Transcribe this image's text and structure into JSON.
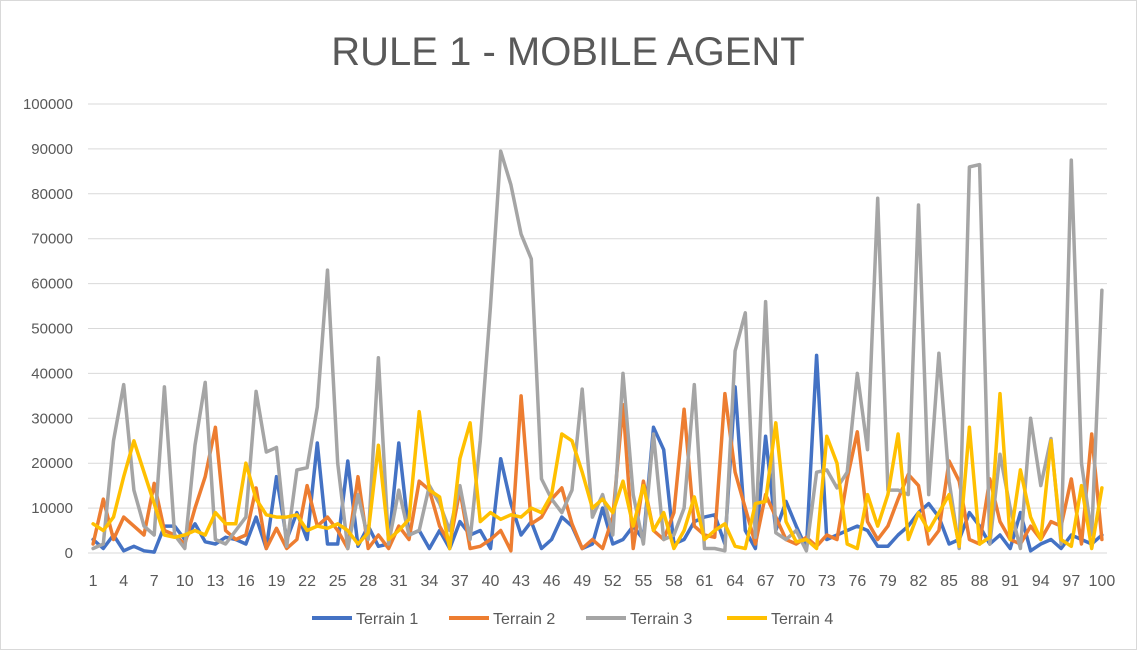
{
  "chart_data": {
    "type": "line",
    "title": "RULE 1 - MOBILE AGENT",
    "xlabel": "",
    "ylabel": "",
    "ylim": [
      0,
      100000
    ],
    "y_ticks": [
      0,
      10000,
      20000,
      30000,
      40000,
      50000,
      60000,
      70000,
      80000,
      90000,
      100000
    ],
    "x": [
      1,
      2,
      3,
      4,
      5,
      6,
      7,
      8,
      9,
      10,
      11,
      12,
      13,
      14,
      15,
      16,
      17,
      18,
      19,
      20,
      21,
      22,
      23,
      24,
      25,
      26,
      27,
      28,
      29,
      30,
      31,
      32,
      33,
      34,
      35,
      36,
      37,
      38,
      39,
      40,
      41,
      42,
      43,
      44,
      45,
      46,
      47,
      48,
      49,
      50,
      51,
      52,
      53,
      54,
      55,
      56,
      57,
      58,
      59,
      60,
      61,
      62,
      63,
      64,
      65,
      66,
      67,
      68,
      69,
      70,
      71,
      72,
      73,
      74,
      75,
      76,
      77,
      78,
      79,
      80,
      81,
      82,
      83,
      84,
      85,
      86,
      87,
      88,
      89,
      90,
      91,
      92,
      93,
      94,
      95,
      96,
      97,
      98,
      99,
      100
    ],
    "x_tick_labels": [
      "1",
      "4",
      "7",
      "10",
      "13",
      "16",
      "19",
      "22",
      "25",
      "28",
      "31",
      "34",
      "37",
      "40",
      "43",
      "46",
      "49",
      "52",
      "55",
      "58",
      "61",
      "64",
      "67",
      "70",
      "73",
      "76",
      "79",
      "82",
      "85",
      "88",
      "91",
      "94",
      "97",
      "100"
    ],
    "grid": true,
    "legend_position": "bottom",
    "series": [
      {
        "name": "Terrain 1",
        "color": "#4472c4",
        "values": [
          3000,
          1000,
          4000,
          500,
          1500,
          500,
          200,
          6000,
          6000,
          3000,
          6500,
          2500,
          2000,
          3500,
          3000,
          2000,
          8000,
          1000,
          17000,
          3000,
          9000,
          3000,
          24500,
          2000,
          2000,
          20500,
          1500,
          6000,
          1500,
          2000,
          24500,
          4000,
          5000,
          1000,
          5000,
          1000,
          7000,
          4000,
          5000,
          1000,
          21000,
          11000,
          4000,
          7000,
          1000,
          3000,
          8000,
          6000,
          1000,
          2000,
          10000,
          2000,
          3000,
          6000,
          3000,
          28000,
          23000,
          2000,
          3000,
          7000,
          8000,
          8500,
          2000,
          37000,
          5000,
          1000,
          26000,
          5000,
          11500,
          6000,
          1000,
          44000,
          3000,
          4000,
          5000,
          6000,
          5000,
          1500,
          1500,
          4000,
          6000,
          9000,
          11000,
          8000,
          2000,
          3000,
          9000,
          6000,
          2000,
          4000,
          1000,
          9000,
          500,
          2000,
          3000,
          1000,
          4000,
          3000,
          2000,
          4000
        ]
      },
      {
        "name": "Terrain 2",
        "color": "#ed7d31",
        "values": [
          2000,
          12000,
          3000,
          8000,
          6000,
          4000,
          15500,
          5000,
          4000,
          2000,
          10000,
          17000,
          28000,
          5000,
          3000,
          4000,
          14500,
          1000,
          5500,
          1000,
          3000,
          15000,
          6000,
          8000,
          5000,
          1000,
          17000,
          1000,
          4000,
          1000,
          6000,
          3000,
          16000,
          14000,
          6000,
          2000,
          14000,
          1000,
          1500,
          3000,
          5000,
          500,
          35000,
          6500,
          8000,
          12000,
          14500,
          6500,
          1000,
          3000,
          1000,
          8000,
          33000,
          1000,
          16000,
          5000,
          3000,
          9000,
          32000,
          6000,
          4000,
          3500,
          35500,
          18000,
          10000,
          2000,
          13000,
          8000,
          3000,
          2000,
          3500,
          1500,
          4000,
          3000,
          16500,
          27000,
          7000,
          3000,
          6000,
          12000,
          17500,
          15000,
          2000,
          5000,
          20500,
          16000,
          3000,
          2000,
          16500,
          7000,
          3000,
          2000,
          6000,
          3000,
          7000,
          6000,
          16500,
          2000,
          26500,
          3000
        ]
      },
      {
        "name": "Terrain 3",
        "color": "#a5a5a5",
        "values": [
          1000,
          2000,
          25000,
          37500,
          14000,
          6000,
          4000,
          37000,
          4000,
          1000,
          24000,
          38000,
          3000,
          2000,
          5000,
          8000,
          36000,
          22500,
          23500,
          1500,
          18500,
          19000,
          32500,
          63000,
          20000,
          1000,
          13000,
          3000,
          43500,
          2000,
          14000,
          4000,
          5000,
          15000,
          11000,
          5000,
          15000,
          3000,
          25000,
          55000,
          89500,
          82000,
          71000,
          65500,
          16500,
          12000,
          9000,
          14000,
          36500,
          8000,
          13000,
          4000,
          40000,
          13000,
          2000,
          26500,
          3000,
          4000,
          10000,
          37500,
          1000,
          1000,
          500,
          45000,
          53500,
          3500,
          56000,
          4500,
          3000,
          5000,
          500,
          18000,
          18500,
          14500,
          18000,
          40000,
          23000,
          79000,
          14000,
          14000,
          13000,
          77500,
          13000,
          44500,
          16000,
          1000,
          86000,
          86500,
          2000,
          22000,
          10000,
          1000,
          30000,
          15000,
          25500,
          2000,
          87500,
          20000,
          4000,
          58500
        ]
      },
      {
        "name": "Terrain 4",
        "color": "#ffc000",
        "values": [
          6500,
          5000,
          8000,
          17000,
          25000,
          18000,
          11000,
          4000,
          3500,
          4000,
          5000,
          4000,
          9000,
          6500,
          6500,
          20000,
          12000,
          8500,
          8000,
          8000,
          8500,
          5000,
          6000,
          5500,
          6500,
          5000,
          2000,
          4500,
          24000,
          3000,
          5000,
          7500,
          31500,
          14000,
          12500,
          1000,
          21000,
          29000,
          7000,
          9000,
          7500,
          8500,
          8000,
          10000,
          9000,
          13000,
          26500,
          25000,
          18000,
          10000,
          12000,
          9000,
          16000,
          6000,
          15000,
          5000,
          9000,
          1000,
          5000,
          12500,
          3000,
          5000,
          6500,
          1500,
          1000,
          11000,
          11500,
          29000,
          7000,
          2500,
          3000,
          1000,
          26000,
          20000,
          2000,
          1000,
          13000,
          6000,
          13000,
          26500,
          3000,
          9000,
          5000,
          9000,
          13000,
          1500,
          28000,
          2000,
          3500,
          35500,
          3000,
          18500,
          8000,
          3000,
          25000,
          3000,
          1500,
          15000,
          1000,
          14500
        ]
      }
    ]
  }
}
